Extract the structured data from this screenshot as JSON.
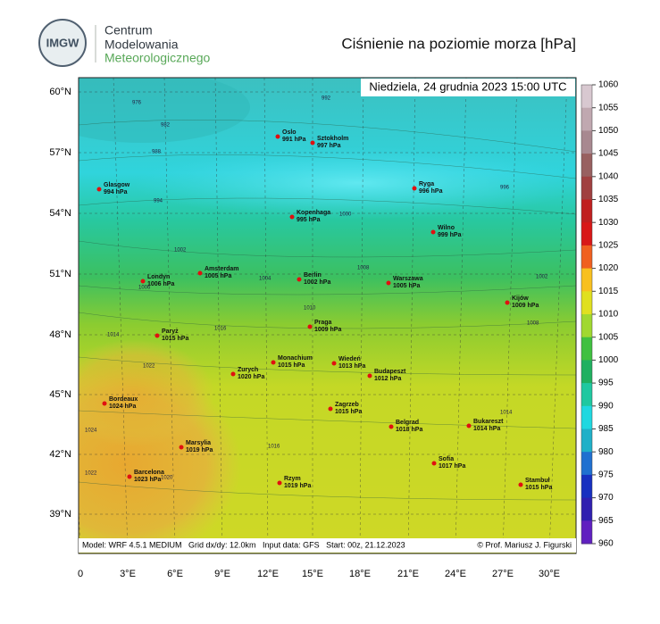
{
  "header": {
    "logo_acronym": "IMGW",
    "logo_lines": [
      "Centrum",
      "Modelowania",
      "Meteorologicznego"
    ],
    "title": "Ciśnienie na poziomie morza [hPa]"
  },
  "map": {
    "date": "Niedziela, 24 grudnia 2023 15:00 UTC",
    "lat_labels": [
      "60°N",
      "57°N",
      "54°N",
      "51°N",
      "48°N",
      "45°N",
      "42°N",
      "39°N"
    ],
    "lon_labels": [
      "0",
      "3°E",
      "6°E",
      "9°E",
      "12°E",
      "15°E",
      "18°E",
      "21°E",
      "24°E",
      "27°E",
      "30°E"
    ],
    "footer": "Model: WRF 4.5.1 MEDIUM   Grid dx/dy: 12.0km   Input data: GFS   Start: 00z, 21.12.2023",
    "credit": "© Prof. Mariusz J. Figurski",
    "cities": [
      {
        "name": "Oslo",
        "pressure": "991 hPa"
      },
      {
        "name": "Sztokholm",
        "pressure": "997 hPa"
      },
      {
        "name": "Glasgow",
        "pressure": "994 hPa"
      },
      {
        "name": "Ryga",
        "pressure": "996 hPa"
      },
      {
        "name": "Kopenhaga",
        "pressure": "995 hPa"
      },
      {
        "name": "Wilno",
        "pressure": "999 hPa"
      },
      {
        "name": "Amsterdam",
        "pressure": "1005 hPa"
      },
      {
        "name": "Londyn",
        "pressure": "1006 hPa"
      },
      {
        "name": "Berlin",
        "pressure": "1002 hPa"
      },
      {
        "name": "Warszawa",
        "pressure": "1005 hPa"
      },
      {
        "name": "Kijów",
        "pressure": "1009 hPa"
      },
      {
        "name": "Paryż",
        "pressure": "1015 hPa"
      },
      {
        "name": "Praga",
        "pressure": "1009 hPa"
      },
      {
        "name": "Monachium",
        "pressure": "1015 hPa"
      },
      {
        "name": "Wiedeń",
        "pressure": "1013 hPa"
      },
      {
        "name": "Zurych",
        "pressure": "1020 hPa"
      },
      {
        "name": "Budapeszt",
        "pressure": "1012 hPa"
      },
      {
        "name": "Bordeaux",
        "pressure": "1024 hPa"
      },
      {
        "name": "Zagrzeb",
        "pressure": "1015 hPa"
      },
      {
        "name": "Belgrad",
        "pressure": "1018 hPa"
      },
      {
        "name": "Bukareszt",
        "pressure": "1014 hPa"
      },
      {
        "name": "Marsylia",
        "pressure": "1019 hPa"
      },
      {
        "name": "Sofia",
        "pressure": "1017 hPa"
      },
      {
        "name": "Barcelona",
        "pressure": "1023 hPa"
      },
      {
        "name": "Rzym",
        "pressure": "1019 hPa"
      },
      {
        "name": "Stambuł",
        "pressure": "1015 hPa"
      }
    ],
    "isobar_labels": [
      "976",
      "982",
      "988",
      "994",
      "1000",
      "1002",
      "1004",
      "1006",
      "1008",
      "1010",
      "1014",
      "1016",
      "1022",
      "1024",
      "1022",
      "1020",
      "1016",
      "1014",
      "1008",
      "1002",
      "996",
      "992"
    ]
  },
  "colorbar": {
    "ticks": [
      1060,
      1055,
      1050,
      1045,
      1040,
      1035,
      1030,
      1025,
      1020,
      1015,
      1010,
      1005,
      1000,
      995,
      990,
      985,
      980,
      975,
      970,
      965,
      960
    ],
    "colors": [
      "#d8c8d0",
      "#c0a8b0",
      "#a88890",
      "#986060",
      "#a04040",
      "#c02020",
      "#d81818",
      "#f06020",
      "#f8c020",
      "#e0e020",
      "#a0d830",
      "#40c040",
      "#20b060",
      "#20c8a0",
      "#20d8e0",
      "#20b0c8",
      "#2070d0",
      "#1830c0",
      "#3020b0",
      "#6020c0"
    ]
  }
}
